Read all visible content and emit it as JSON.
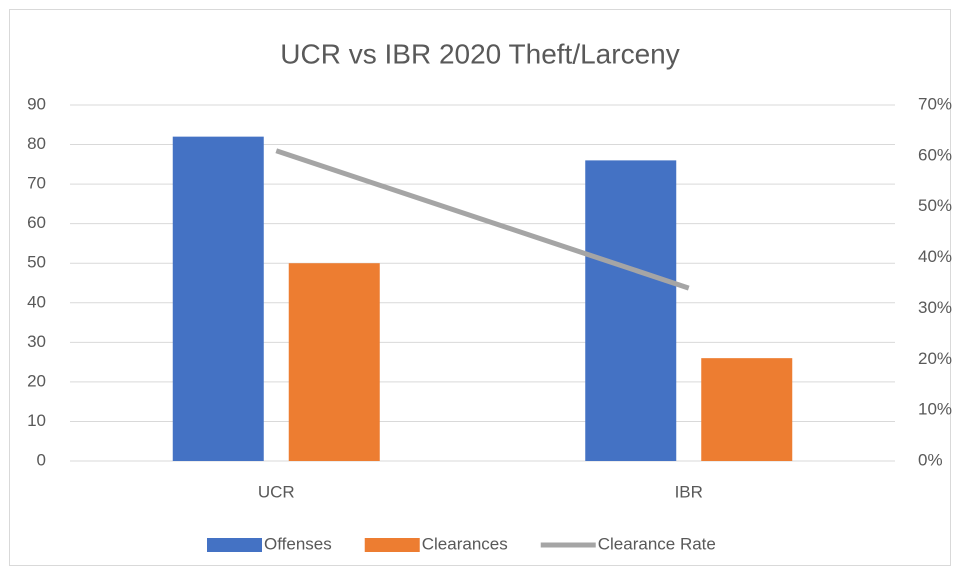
{
  "chart_data": {
    "type": "bar",
    "title": "UCR vs IBR 2020 Theft/Larceny",
    "categories": [
      "UCR",
      "IBR"
    ],
    "series": [
      {
        "name": "Offenses",
        "color": "#4472c4",
        "values": [
          82,
          76
        ]
      },
      {
        "name": "Clearances",
        "color": "#ed7d31",
        "values": [
          50,
          26
        ]
      },
      {
        "name": "Clearance Rate",
        "color": "#a5a5a5",
        "type": "line",
        "axis": "y2",
        "values": [
          61,
          34
        ]
      }
    ],
    "ylim": [
      0,
      90
    ],
    "yticks": [
      0,
      10,
      20,
      30,
      40,
      50,
      60,
      70,
      80,
      90
    ],
    "y2lim": [
      0,
      70
    ],
    "y2ticks": [
      {
        "value": 0,
        "label": "0%"
      },
      {
        "value": 10,
        "label": "10%"
      },
      {
        "value": 20,
        "label": "20%"
      },
      {
        "value": 30,
        "label": "30%"
      },
      {
        "value": 40,
        "label": "40%"
      },
      {
        "value": 50,
        "label": "50%"
      },
      {
        "value": 60,
        "label": "60%"
      },
      {
        "value": 70,
        "label": "70%"
      }
    ],
    "grid": true,
    "legend": "bottom"
  }
}
